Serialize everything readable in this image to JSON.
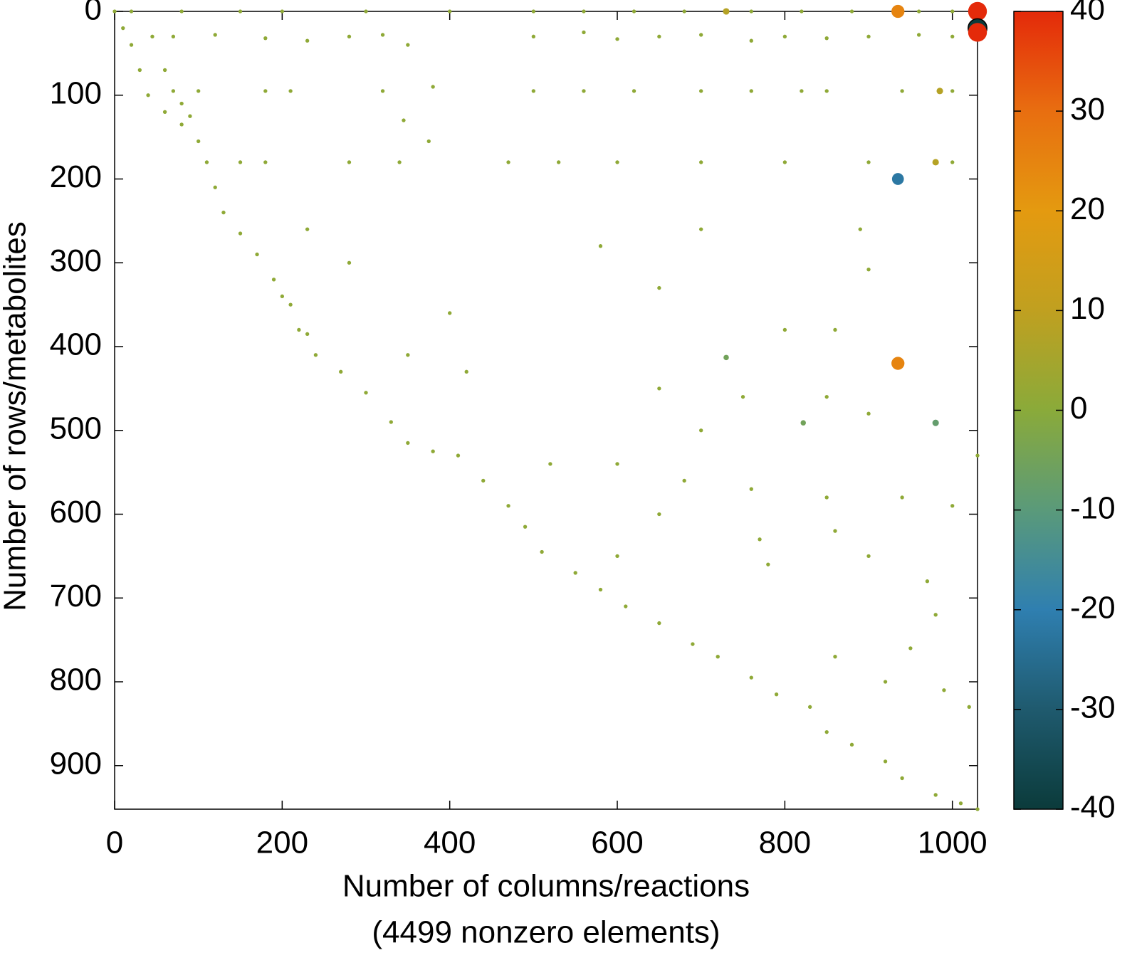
{
  "chart_data": {
    "type": "scatter",
    "xlabel": [
      "Number of columns/reactions",
      "(4499 nonzero elements)"
    ],
    "ylabel": "Number of rows/metabolites",
    "xlim": [
      0,
      1030
    ],
    "ylim": [
      952,
      0
    ],
    "y_reversed": true,
    "xticks": [
      0,
      200,
      400,
      600,
      800,
      1000
    ],
    "yticks": [
      0,
      100,
      200,
      300,
      400,
      500,
      600,
      700,
      800,
      900
    ],
    "colorbar": {
      "lim": [
        -40,
        40
      ],
      "ticks": [
        -40,
        -30,
        -20,
        -10,
        0,
        10,
        20,
        30,
        40
      ],
      "colors": [
        "#0b3b3b",
        "#1f5a6e",
        "#2f7fb0",
        "#5a9a7a",
        "#8aaa3a",
        "#c0a020",
        "#e49a10",
        "#e86e10",
        "#e42a0a"
      ]
    },
    "points": {
      "x": [
        0,
        10,
        20,
        30,
        40,
        60,
        80,
        100,
        110,
        120,
        130,
        150,
        170,
        190,
        210,
        230,
        240,
        270,
        300,
        330,
        350,
        380,
        410,
        440,
        470,
        490,
        510,
        550,
        580,
        610,
        650,
        690,
        720,
        760,
        790,
        830,
        850,
        880,
        920,
        940,
        980,
        1010,
        1030,
        45,
        60,
        80,
        90,
        350,
        380,
        345,
        375,
        400,
        420,
        20,
        80,
        150,
        200,
        300,
        400,
        500,
        560,
        620,
        680,
        760,
        820,
        880,
        960,
        1000,
        730,
        935,
        1030,
        1030,
        1030,
        70,
        120,
        180,
        230,
        280,
        320,
        500,
        560,
        600,
        650,
        700,
        760,
        800,
        850,
        900,
        960,
        1000,
        70,
        100,
        180,
        210,
        320,
        500,
        560,
        620,
        700,
        760,
        820,
        850,
        940,
        1000,
        985,
        150,
        180,
        280,
        340,
        470,
        530,
        600,
        700,
        800,
        900,
        980,
        1000,
        935,
        230,
        280,
        200,
        220,
        650,
        350,
        730,
        580,
        700,
        800,
        860,
        890,
        900,
        650,
        750,
        850,
        900,
        935,
        822,
        980,
        700,
        600,
        680,
        760,
        850,
        940,
        1000,
        770,
        780,
        650,
        600,
        860,
        900,
        970,
        980,
        860,
        920,
        990,
        1020,
        950,
        1030,
        520
      ],
      "y": [
        0,
        20,
        40,
        70,
        100,
        120,
        135,
        155,
        180,
        210,
        240,
        265,
        290,
        320,
        350,
        385,
        410,
        430,
        455,
        490,
        515,
        525,
        530,
        560,
        590,
        615,
        645,
        670,
        690,
        710,
        730,
        755,
        770,
        795,
        815,
        830,
        860,
        875,
        895,
        915,
        935,
        945,
        952,
        30,
        70,
        110,
        125,
        40,
        90,
        130,
        155,
        360,
        430,
        0,
        0,
        0,
        0,
        0,
        0,
        0,
        0,
        0,
        0,
        0,
        0,
        0,
        0,
        0,
        0,
        0,
        0,
        20,
        25,
        30,
        28,
        32,
        35,
        30,
        28,
        30,
        25,
        33,
        30,
        28,
        35,
        30,
        32,
        30,
        28,
        30,
        95,
        95,
        95,
        95,
        95,
        95,
        95,
        95,
        95,
        95,
        95,
        95,
        95,
        95,
        95,
        180,
        180,
        180,
        180,
        180,
        180,
        180,
        180,
        180,
        180,
        180,
        180,
        200,
        260,
        300,
        340,
        380,
        330,
        410,
        413,
        280,
        260,
        380,
        380,
        260,
        308,
        450,
        460,
        460,
        480,
        420,
        491,
        491,
        500,
        540,
        560,
        570,
        580,
        580,
        590,
        630,
        660,
        600,
        650,
        620,
        650,
        680,
        720,
        770,
        800,
        810,
        830,
        760,
        530,
        540
      ],
      "values": [
        1,
        1,
        1,
        1,
        1,
        1,
        1,
        1,
        1,
        1,
        1,
        1,
        1,
        1,
        1,
        1,
        1,
        1,
        1,
        1,
        1,
        1,
        1,
        1,
        1,
        1,
        1,
        1,
        1,
        1,
        1,
        1,
        1,
        1,
        1,
        1,
        1,
        1,
        1,
        1,
        1,
        1,
        1,
        1,
        1,
        1,
        1,
        1,
        1,
        1,
        1,
        1,
        1,
        1,
        1,
        1,
        1,
        1,
        1,
        1,
        1,
        1,
        1,
        1,
        1,
        1,
        1,
        1,
        8,
        25,
        40,
        -40,
        40,
        1,
        1,
        1,
        1,
        1,
        1,
        1,
        1,
        1,
        1,
        1,
        1,
        1,
        1,
        1,
        1,
        1,
        1,
        1,
        1,
        1,
        1,
        1,
        1,
        1,
        1,
        1,
        1,
        1,
        1,
        1,
        8,
        1,
        1,
        1,
        1,
        1,
        1,
        1,
        1,
        1,
        1,
        8,
        1,
        -22,
        1,
        1,
        1,
        1,
        1,
        1,
        -5,
        1,
        1,
        1,
        1,
        1,
        1,
        1,
        1,
        1,
        1,
        25,
        -5,
        -8,
        1,
        1,
        1,
        1,
        1,
        1,
        1,
        1,
        1,
        1,
        1,
        1,
        1,
        1,
        1,
        1,
        1,
        1,
        1,
        1,
        1,
        1
      ]
    }
  }
}
